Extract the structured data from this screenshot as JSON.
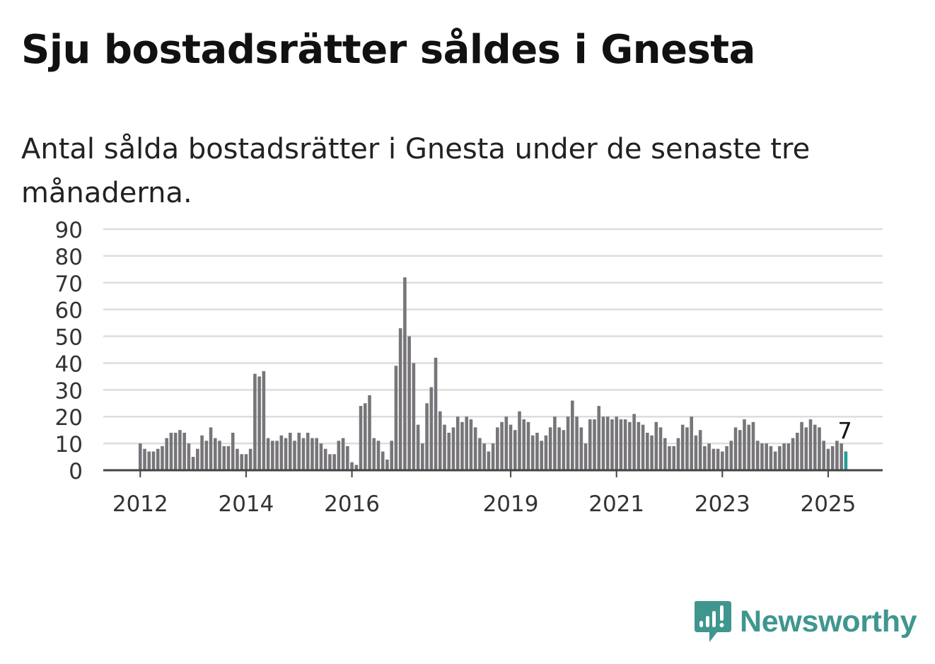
{
  "header": {
    "title": "Sju bostadsrätter såldes i Gnesta",
    "subtitle": "Antal sålda bostadsrätter i Gnesta under de senaste tre månaderna."
  },
  "brand": {
    "name": "Newsworthy",
    "icon": "newsworthy-logo-icon",
    "color": "#3f968f"
  },
  "chart_data": {
    "type": "bar",
    "start": "2012-01",
    "y_ticks": [
      0,
      10,
      20,
      30,
      40,
      50,
      60,
      70,
      80,
      90
    ],
    "ylim": [
      0,
      90
    ],
    "x_ticks": [
      "2012",
      "2014",
      "2016",
      "2019",
      "2021",
      "2023",
      "2025"
    ],
    "grid": true,
    "bar_color": "#77757a",
    "highlight_color": "#229e99",
    "highlight_label": "7",
    "values": [
      10,
      8,
      7,
      7,
      8,
      9,
      12,
      14,
      14,
      15,
      14,
      10,
      5,
      8,
      13,
      11,
      16,
      12,
      11,
      9,
      9,
      14,
      8,
      6,
      6,
      8,
      36,
      35,
      37,
      12,
      11,
      11,
      13,
      12,
      14,
      11,
      14,
      12,
      14,
      12,
      12,
      10,
      8,
      6,
      6,
      11,
      12,
      9,
      3,
      2,
      24,
      25,
      28,
      12,
      11,
      7,
      4,
      11,
      39,
      53,
      72,
      50,
      40,
      17,
      10,
      25,
      31,
      42,
      22,
      17,
      14,
      16,
      20,
      18,
      20,
      19,
      16,
      12,
      10,
      7,
      10,
      16,
      18,
      20,
      17,
      15,
      22,
      19,
      18,
      13,
      14,
      11,
      13,
      16,
      20,
      16,
      15,
      20,
      26,
      20,
      16,
      10,
      19,
      19,
      24,
      20,
      20,
      19,
      20,
      19,
      19,
      18,
      21,
      18,
      17,
      14,
      13,
      18,
      16,
      12,
      9,
      9,
      12,
      17,
      16,
      20,
      13,
      15,
      9,
      10,
      8,
      8,
      7,
      9,
      11,
      16,
      15,
      19,
      17,
      18,
      11,
      10,
      10,
      9,
      7,
      9,
      10,
      10,
      12,
      14,
      18,
      16,
      19,
      17,
      16,
      11,
      8,
      9,
      11,
      10,
      7
    ]
  }
}
